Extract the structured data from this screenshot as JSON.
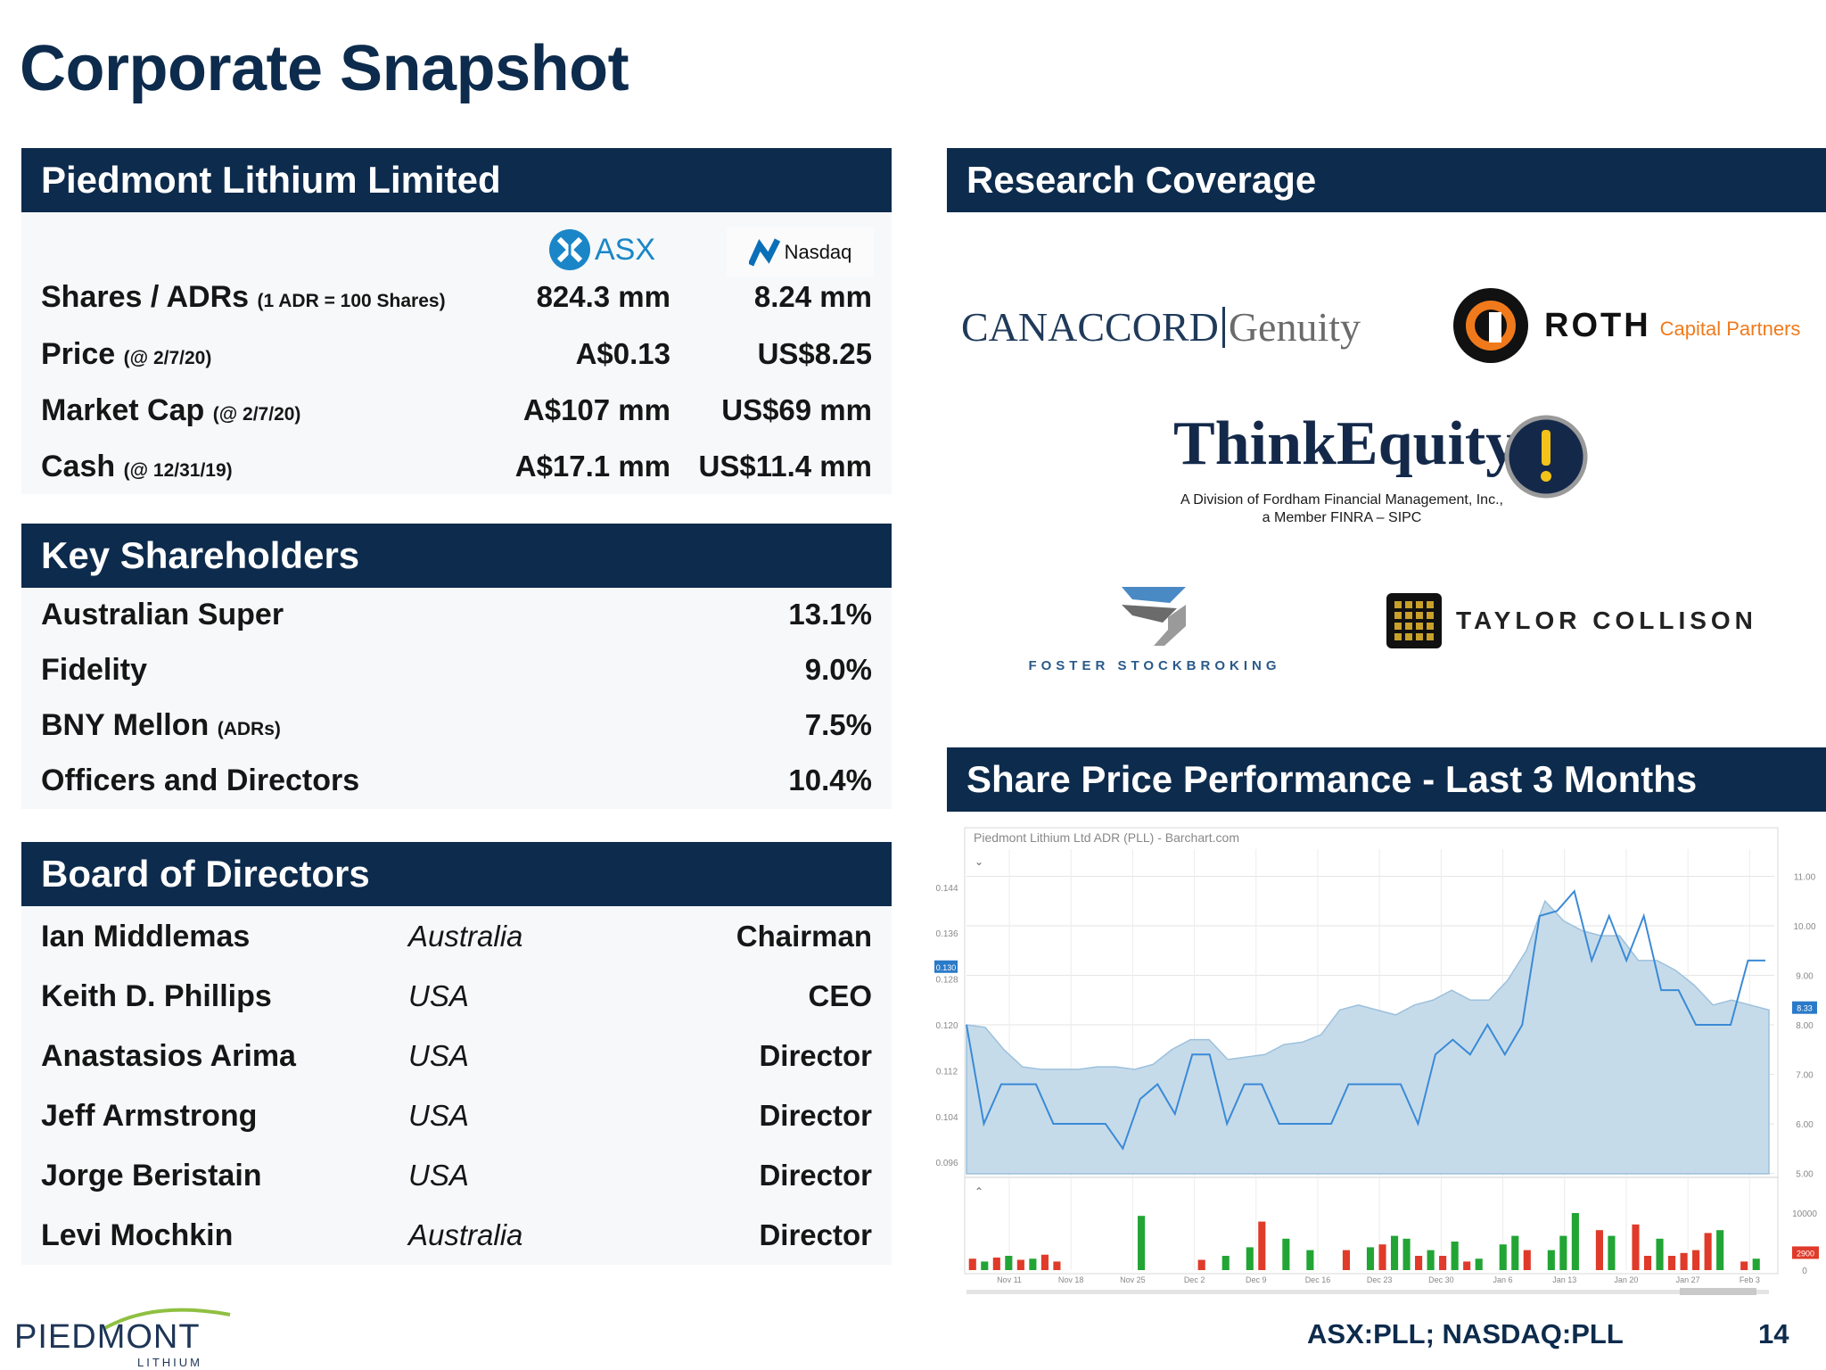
{
  "page_title": "Corporate Snapshot",
  "company": {
    "header": "Piedmont Lithium Limited",
    "exchanges": [
      {
        "name": "ASX",
        "icon": "asx-logo-icon"
      },
      {
        "name": "Nasdaq",
        "icon": "nasdaq-logo-icon"
      }
    ],
    "rows": [
      {
        "label": "Shares / ADRs",
        "note": "(1 ADR = 100 Shares)",
        "asx": "824.3 mm",
        "nasdaq": "8.24 mm"
      },
      {
        "label": "Price",
        "note": "(@ 2/7/20)",
        "asx": "A$0.13",
        "nasdaq": "US$8.25"
      },
      {
        "label": "Market Cap",
        "note": "(@ 2/7/20)",
        "asx": "A$107 mm",
        "nasdaq": "US$69 mm"
      },
      {
        "label": "Cash",
        "note": "(@ 12/31/19)",
        "asx": "A$17.1 mm",
        "nasdaq": "US$11.4 mm"
      }
    ]
  },
  "shareholders": {
    "header": "Key Shareholders",
    "rows": [
      {
        "name": "Australian Super",
        "note": "",
        "pct": "13.1%"
      },
      {
        "name": "Fidelity",
        "note": "",
        "pct": "9.0%"
      },
      {
        "name": "BNY Mellon",
        "note": "(ADRs)",
        "pct": "7.5%"
      },
      {
        "name": "Officers and Directors",
        "note": "",
        "pct": "10.4%"
      }
    ]
  },
  "board": {
    "header": "Board of Directors",
    "rows": [
      {
        "name": "Ian Middlemas",
        "country": "Australia",
        "role": "Chairman"
      },
      {
        "name": "Keith D. Phillips",
        "country": "USA",
        "role": "CEO"
      },
      {
        "name": "Anastasios Arima",
        "country": "USA",
        "role": "Director"
      },
      {
        "name": "Jeff Armstrong",
        "country": "USA",
        "role": "Director"
      },
      {
        "name": "Jorge Beristain",
        "country": "USA",
        "role": "Director"
      },
      {
        "name": "Levi Mochkin",
        "country": "Australia",
        "role": "Director"
      }
    ]
  },
  "research": {
    "header": "Research Coverage",
    "canaccord": {
      "word1": "CANACCORD",
      "word2": "Genuity"
    },
    "roth": {
      "word1": "ROTH",
      "word2": "Capital Partners"
    },
    "thinkequity": {
      "word": "ThinkEquity",
      "line1": "A Division of Fordham Financial Management, Inc.,",
      "line2": "a Member FINRA – SIPC"
    },
    "foster": {
      "word": "FOSTER STOCKBROKING"
    },
    "taylor": {
      "word": "TAYLOR COLLISON"
    }
  },
  "share_price": {
    "header": "Share Price Performance - Last 3 Months"
  },
  "chart_data": {
    "type": "line",
    "title": "Piedmont Lithium Ltd ADR (PLL) - Barchart.com",
    "x_tick_labels": [
      "Nov 11",
      "Nov 18",
      "Nov 25",
      "Dec 2",
      "Dec 9",
      "Dec 16",
      "Dec 23",
      "Dec 30",
      "Jan 6",
      "Jan 13",
      "Jan 20",
      "Jan 27",
      "Feb 3"
    ],
    "left_axis": {
      "ticks": [
        0.144,
        0.136,
        0.128,
        0.12,
        0.112,
        0.104,
        0.096
      ],
      "tick_labels": [
        "0.144",
        "0.136",
        "0.128",
        "0.120",
        "0.112",
        "0.104",
        "0.096"
      ],
      "range": [
        0.094,
        0.146
      ],
      "current_label": "0.130"
    },
    "right_axis": {
      "ticks": [
        11,
        10,
        9,
        8,
        7,
        6,
        5
      ],
      "tick_labels": [
        "11.00",
        "10.00",
        "9.00",
        "8.00",
        "7.00",
        "6.00",
        "5.00"
      ],
      "range": [
        4.99,
        11.01
      ],
      "current_label": "8.33"
    },
    "volume_axis": {
      "tick_labels": [
        "10000",
        "0"
      ],
      "max": 15000,
      "current_label": "2900"
    },
    "grid": true,
    "series": [
      {
        "kind": "area",
        "axis": "right",
        "values": [
          8.0,
          7.95,
          7.5,
          7.15,
          7.1,
          7.1,
          7.1,
          7.15,
          7.15,
          7.1,
          7.2,
          7.5,
          7.7,
          7.7,
          7.3,
          7.35,
          7.4,
          7.6,
          7.65,
          7.8,
          8.3,
          8.4,
          8.3,
          8.2,
          8.4,
          8.5,
          8.7,
          8.5,
          8.5,
          8.9,
          9.5,
          10.5,
          10.1,
          9.9,
          9.8,
          9.8,
          9.3,
          9.3,
          9.1,
          8.8,
          8.4,
          8.5,
          8.4,
          8.3
        ]
      },
      {
        "kind": "line",
        "axis": "right",
        "values": [
          8.0,
          6.0,
          6.8,
          6.8,
          6.8,
          6.0,
          6.0,
          6.0,
          6.0,
          5.5,
          6.5,
          6.8,
          6.2,
          7.4,
          7.4,
          6.0,
          6.8,
          6.8,
          6.0,
          6.0,
          6.0,
          6.0,
          6.8,
          6.8,
          6.8,
          6.8,
          6.0,
          7.4,
          7.7,
          7.4,
          8.0,
          7.4,
          8.0,
          10.2,
          10.3,
          10.7,
          9.3,
          10.2,
          9.3,
          10.2,
          8.7,
          8.7,
          8.0,
          8.0,
          8.0,
          9.3,
          9.3
        ]
      },
      {
        "kind": "volume_up",
        "values": [
          0,
          1500,
          0,
          2500,
          0,
          2000,
          0,
          0,
          0,
          0,
          0,
          0,
          0,
          0,
          9500,
          0,
          0,
          0,
          0,
          0,
          0,
          2500,
          0,
          4000,
          0,
          0,
          5500,
          0,
          3500,
          0,
          0,
          0,
          0,
          4000,
          0,
          6000,
          5500,
          0,
          3500,
          0,
          5000,
          0,
          2000,
          0,
          4500,
          6000,
          0,
          0,
          3500,
          6000,
          10000,
          0,
          0,
          6000,
          0,
          0,
          0,
          5500,
          0,
          0,
          0,
          0,
          7000,
          0,
          0,
          2000,
          0
        ]
      },
      {
        "kind": "volume_down",
        "values": [
          2000,
          0,
          2200,
          0,
          1800,
          0,
          2700,
          1500,
          0,
          0,
          0,
          0,
          0,
          0,
          0,
          0,
          0,
          0,
          0,
          1800,
          0,
          0,
          0,
          0,
          8500,
          0,
          0,
          0,
          0,
          0,
          0,
          3500,
          0,
          0,
          4500,
          0,
          0,
          2500,
          0,
          2500,
          0,
          1500,
          0,
          0,
          0,
          0,
          3500,
          0,
          0,
          0,
          0,
          0,
          7000,
          0,
          0,
          8000,
          2500,
          0,
          2500,
          3000,
          3500,
          6500,
          0,
          0,
          1500,
          0,
          0
        ]
      }
    ]
  },
  "footer": {
    "logo_word": "PIEDMONT",
    "logo_sub": "LITHIUM",
    "ticker": "ASX:PLL; NASDAQ:PLL",
    "page_number": "14"
  }
}
